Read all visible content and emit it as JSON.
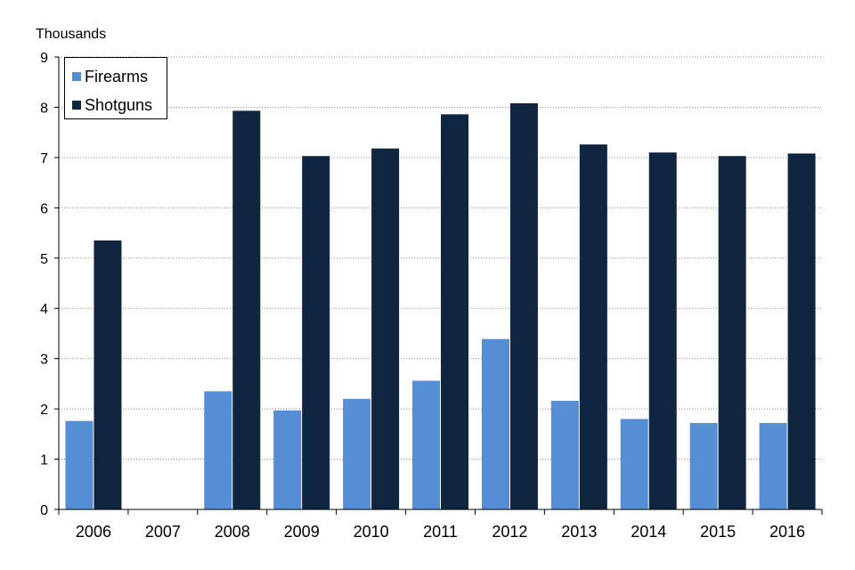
{
  "chart_data": {
    "type": "bar",
    "ylabel": "Thousands",
    "xlabel": "",
    "ylim": [
      0,
      9
    ],
    "yticks": [
      "0",
      "1",
      "2",
      "3",
      "4",
      "5",
      "6",
      "7",
      "8",
      "9"
    ],
    "categories": [
      "2006",
      "2007",
      "2008",
      "2009",
      "2010",
      "2011",
      "2012",
      "2013",
      "2014",
      "2015",
      "2016"
    ],
    "series": [
      {
        "name": "Firearms",
        "color": "#558ED5",
        "values": [
          1.76,
          null,
          2.35,
          1.97,
          2.2,
          2.56,
          3.39,
          2.16,
          1.8,
          1.72,
          1.72
        ]
      },
      {
        "name": "Shotguns",
        "color": "#10253F",
        "values": [
          5.35,
          null,
          7.93,
          7.03,
          7.18,
          7.86,
          8.08,
          7.26,
          7.1,
          7.03,
          7.08
        ]
      }
    ],
    "grid": "horizontal dotted",
    "legend_position": "top-left"
  }
}
